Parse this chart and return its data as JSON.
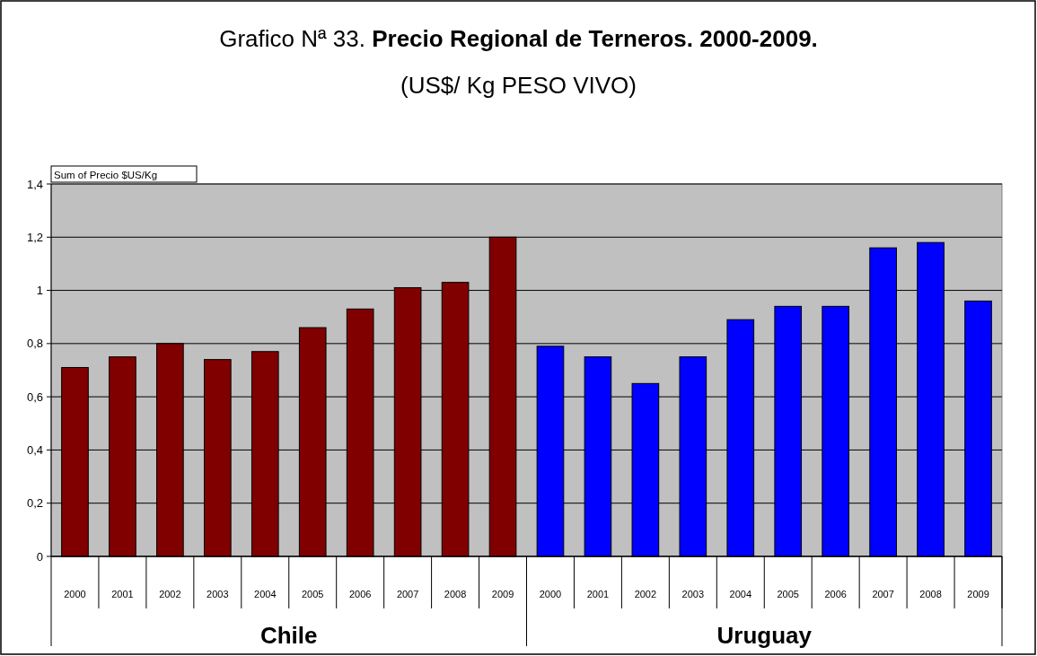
{
  "chart_data": {
    "type": "bar",
    "title": "Grafico Nª 33. Precio Regional de Terneros. 2000-2009.",
    "subtitle": "(US$/ Kg PESO VIVO)",
    "categories": [
      "2000",
      "2001",
      "2002",
      "2003",
      "2004",
      "2005",
      "2006",
      "2007",
      "2008",
      "2009",
      "2000",
      "2001",
      "2002",
      "2003",
      "2004",
      "2005",
      "2006",
      "2007",
      "2008",
      "2009"
    ],
    "values": [
      0.71,
      0.75,
      0.8,
      0.74,
      0.77,
      0.86,
      0.93,
      1.01,
      1.03,
      1.2,
      0.79,
      0.75,
      0.65,
      0.75,
      0.89,
      0.94,
      0.94,
      1.16,
      1.18,
      0.96
    ],
    "colors": [
      "#800000",
      "#800000",
      "#800000",
      "#800000",
      "#800000",
      "#800000",
      "#800000",
      "#800000",
      "#800000",
      "#800000",
      "#0000ff",
      "#0000ff",
      "#0000ff",
      "#0000ff",
      "#0000ff",
      "#0000ff",
      "#0000ff",
      "#0000ff",
      "#0000ff",
      "#0000ff"
    ],
    "ylim": [
      0,
      1.4
    ],
    "yticks": [
      0,
      {
        "value": 0.2,
        "label": "0,2"
      },
      {
        "value": 0.4,
        "label": "0,4"
      },
      {
        "value": 0.6,
        "label": "0,6"
      },
      {
        "value": 0.8,
        "label": "0,8"
      },
      1,
      {
        "value": 1.2,
        "label": "1,2"
      },
      {
        "value": 1.4,
        "label": "1,4"
      }
    ],
    "grid": "y",
    "annotations": [
      "Sum of Precio $US/Kg",
      "Chile",
      "Uruguay"
    ]
  }
}
